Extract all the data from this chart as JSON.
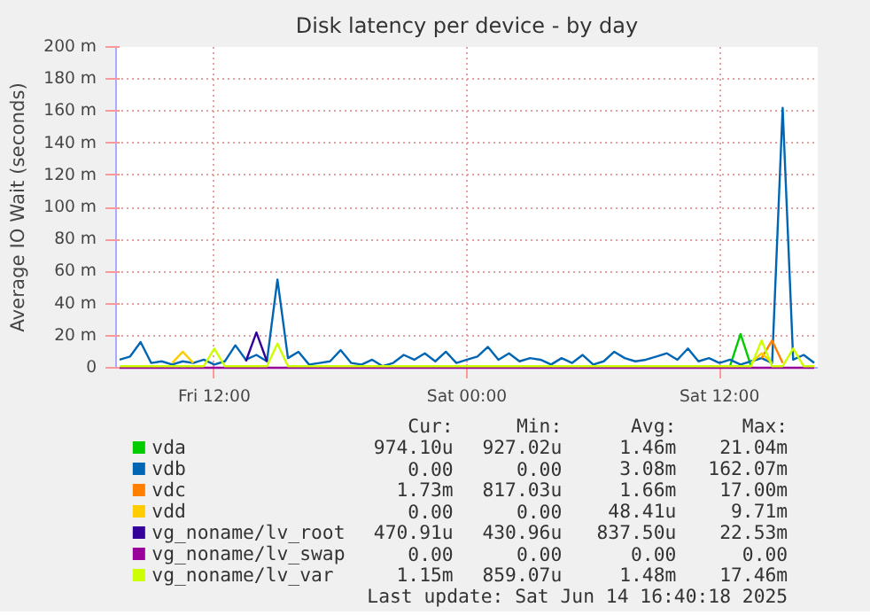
{
  "chart_data": {
    "type": "line",
    "title": "Disk latency per device - by day",
    "ylabel": "Average IO Wait (seconds)",
    "x": [
      "2025-06-13T07:30",
      "2025-06-13T08:00",
      "2025-06-13T08:30",
      "2025-06-13T09:00",
      "2025-06-13T09:30",
      "2025-06-13T10:00",
      "2025-06-13T10:30",
      "2025-06-13T11:00",
      "2025-06-13T11:30",
      "2025-06-13T12:00",
      "2025-06-13T12:30",
      "2025-06-13T13:00",
      "2025-06-13T13:30",
      "2025-06-13T14:00",
      "2025-06-13T14:30",
      "2025-06-13T15:00",
      "2025-06-13T15:30",
      "2025-06-13T16:00",
      "2025-06-13T16:30",
      "2025-06-13T17:00",
      "2025-06-13T17:30",
      "2025-06-13T18:00",
      "2025-06-13T18:30",
      "2025-06-13T19:00",
      "2025-06-13T19:30",
      "2025-06-13T20:00",
      "2025-06-13T20:30",
      "2025-06-13T21:00",
      "2025-06-13T21:30",
      "2025-06-13T22:00",
      "2025-06-13T22:30",
      "2025-06-13T23:00",
      "2025-06-13T23:30",
      "2025-06-14T00:00",
      "2025-06-14T00:30",
      "2025-06-14T01:00",
      "2025-06-14T01:30",
      "2025-06-14T02:00",
      "2025-06-14T02:30",
      "2025-06-14T03:00",
      "2025-06-14T03:30",
      "2025-06-14T04:00",
      "2025-06-14T04:30",
      "2025-06-14T05:00",
      "2025-06-14T05:30",
      "2025-06-14T06:00",
      "2025-06-14T06:30",
      "2025-06-14T07:00",
      "2025-06-14T07:30",
      "2025-06-14T08:00",
      "2025-06-14T08:30",
      "2025-06-14T09:00",
      "2025-06-14T09:30",
      "2025-06-14T10:00",
      "2025-06-14T10:30",
      "2025-06-14T11:00",
      "2025-06-14T11:30",
      "2025-06-14T12:00",
      "2025-06-14T12:30",
      "2025-06-14T13:00",
      "2025-06-14T13:30",
      "2025-06-14T14:00",
      "2025-06-14T14:30",
      "2025-06-14T15:00",
      "2025-06-14T15:30",
      "2025-06-14T16:00",
      "2025-06-14T16:30"
    ],
    "xlim": [
      "2025-06-13T07:20",
      "2025-06-14T16:40"
    ],
    "xticks": [
      {
        "value": "2025-06-13T12:00",
        "label": "Fri 12:00"
      },
      {
        "value": "2025-06-14T00:00",
        "label": "Sat 00:00"
      },
      {
        "value": "2025-06-14T12:00",
        "label": "Sat 12:00"
      }
    ],
    "ylim": [
      0,
      200
    ],
    "yticks": [
      {
        "value": 0,
        "label": "0"
      },
      {
        "value": 20,
        "label": "20 m"
      },
      {
        "value": 40,
        "label": "40 m"
      },
      {
        "value": 60,
        "label": "60 m"
      },
      {
        "value": 80,
        "label": "80 m"
      },
      {
        "value": 100,
        "label": "100 m"
      },
      {
        "value": 120,
        "label": "120 m"
      },
      {
        "value": 140,
        "label": "140 m"
      },
      {
        "value": 160,
        "label": "160 m"
      },
      {
        "value": 180,
        "label": "180 m"
      },
      {
        "value": 200,
        "label": "200 m"
      }
    ],
    "grid": true,
    "legend": "bottom",
    "series": [
      {
        "name": "vda",
        "color": "#00cc00",
        "values": [
          null,
          null,
          null,
          null,
          null,
          null,
          null,
          null,
          null,
          null,
          null,
          null,
          null,
          null,
          null,
          null,
          null,
          null,
          null,
          null,
          null,
          null,
          null,
          null,
          null,
          null,
          null,
          null,
          null,
          null,
          null,
          null,
          null,
          null,
          null,
          null,
          null,
          null,
          null,
          null,
          null,
          null,
          null,
          null,
          null,
          null,
          null,
          null,
          null,
          null,
          null,
          null,
          null,
          null,
          null,
          null,
          null,
          null,
          1,
          21,
          1,
          null,
          null,
          null,
          null,
          null,
          null
        ]
      },
      {
        "name": "vdb",
        "color": "#0066b3",
        "values": [
          5,
          7,
          16,
          3,
          4,
          2,
          4,
          3,
          5,
          2,
          4,
          14,
          5,
          8,
          4,
          55,
          6,
          10,
          2,
          3,
          4,
          11,
          3,
          2,
          5,
          1,
          3,
          8,
          5,
          9,
          4,
          10,
          3,
          5,
          7,
          13,
          5,
          9,
          4,
          6,
          5,
          2,
          6,
          3,
          8,
          2,
          4,
          10,
          6,
          4,
          5,
          7,
          9,
          5,
          12,
          4,
          6,
          3,
          5,
          2,
          4,
          6,
          3,
          162,
          5,
          8,
          3
        ]
      },
      {
        "name": "vdc",
        "color": "#ff8000",
        "values": [
          null,
          null,
          null,
          null,
          null,
          null,
          null,
          null,
          null,
          null,
          null,
          null,
          null,
          null,
          null,
          null,
          null,
          null,
          null,
          null,
          null,
          null,
          null,
          null,
          null,
          null,
          null,
          null,
          null,
          null,
          null,
          null,
          null,
          null,
          null,
          null,
          null,
          null,
          null,
          null,
          null,
          null,
          null,
          null,
          null,
          null,
          null,
          null,
          null,
          null,
          null,
          null,
          null,
          null,
          null,
          null,
          null,
          null,
          null,
          null,
          null,
          6,
          17,
          3,
          null,
          null,
          null
        ]
      },
      {
        "name": "vdd",
        "color": "#ffcc00",
        "values": [
          null,
          null,
          null,
          null,
          null,
          3,
          10,
          3,
          null,
          null,
          null,
          null,
          null,
          null,
          null,
          null,
          null,
          null,
          null,
          null,
          null,
          null,
          null,
          null,
          null,
          null,
          null,
          null,
          null,
          null,
          null,
          null,
          null,
          null,
          null,
          null,
          null,
          null,
          null,
          null,
          null,
          null,
          null,
          null,
          null,
          null,
          null,
          null,
          null,
          null,
          null,
          null,
          null,
          null,
          null,
          null,
          null,
          null,
          null,
          null,
          3,
          9,
          3,
          null,
          null,
          null,
          null
        ]
      },
      {
        "name": "vg_noname/lv_root",
        "color": "#330099",
        "values": [
          null,
          null,
          null,
          null,
          null,
          null,
          null,
          null,
          null,
          null,
          null,
          null,
          4,
          22,
          4,
          null,
          null,
          null,
          null,
          null,
          null,
          null,
          null,
          null,
          null,
          null,
          null,
          null,
          null,
          null,
          null,
          null,
          null,
          null,
          null,
          null,
          null,
          null,
          null,
          null,
          null,
          null,
          null,
          null,
          null,
          null,
          null,
          null,
          null,
          null,
          null,
          null,
          null,
          null,
          null,
          null,
          null,
          null,
          null,
          null,
          null,
          null,
          null,
          null,
          null,
          null,
          null
        ]
      },
      {
        "name": "vg_noname/lv_swap",
        "color": "#990099",
        "values": [
          0,
          0,
          0,
          0,
          0,
          0,
          0,
          0,
          0,
          0,
          0,
          0,
          0,
          0,
          0,
          0,
          0,
          0,
          0,
          0,
          0,
          0,
          0,
          0,
          0,
          0,
          0,
          0,
          0,
          0,
          0,
          0,
          0,
          0,
          0,
          0,
          0,
          0,
          0,
          0,
          0,
          0,
          0,
          0,
          0,
          0,
          0,
          0,
          0,
          0,
          0,
          0,
          0,
          0,
          0,
          0,
          0,
          0,
          0,
          0,
          0,
          0,
          0,
          0,
          0,
          0,
          0
        ]
      },
      {
        "name": "vg_noname/lv_var",
        "color": "#ccff00",
        "values": [
          1,
          1,
          1,
          1,
          1,
          1,
          1,
          1,
          1,
          12,
          1,
          1,
          1,
          1,
          1,
          15,
          1,
          1,
          1,
          1,
          1,
          1,
          1,
          1,
          1,
          1,
          1,
          1,
          1,
          1,
          1,
          1,
          1,
          1,
          1,
          1,
          1,
          1,
          1,
          1,
          1,
          1,
          1,
          1,
          1,
          1,
          1,
          1,
          1,
          1,
          1,
          1,
          1,
          1,
          1,
          1,
          1,
          1,
          1,
          1,
          1,
          17,
          1,
          1,
          12,
          1,
          1
        ]
      }
    ],
    "annotations": [
      "Cur:",
      "Min:",
      "Avg:",
      "Max:",
      "974.10u",
      "927.02u",
      "1.46m",
      "21.04m",
      "0.00",
      "0.00",
      "3.08m",
      "162.07m",
      "1.73m",
      "817.03u",
      "1.66m",
      "17.00m",
      "0.00",
      "0.00",
      "48.41u",
      "9.71m",
      "470.91u",
      "430.96u",
      "837.50u",
      "22.53m",
      "0.00",
      "0.00",
      "0.00",
      "0.00",
      "1.15m",
      "859.07u",
      "1.48m",
      "17.46m",
      "Last update: Sat Jun 14 16:40:18 2025"
    ]
  }
}
